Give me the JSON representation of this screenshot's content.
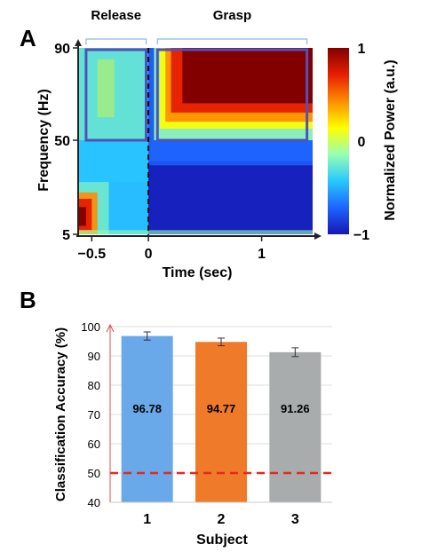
{
  "chart_data": [
    {
      "type": "heatmap",
      "panel_label": "A",
      "xlabel": "Time (sec)",
      "ylabel": "Frequency (Hz)",
      "xlim": [
        -0.62,
        1.45
      ],
      "x_ticks": [
        {
          "value": -0.5,
          "label": "−0.5"
        },
        {
          "value": 0,
          "label": "0"
        },
        {
          "value": 1,
          "label": "1"
        }
      ],
      "y_ticks": [
        {
          "value": 5,
          "label": "5"
        },
        {
          "value": 50,
          "label": "50"
        },
        {
          "value": 90,
          "label": "90"
        }
      ],
      "onset_marker_x": 0,
      "regions": [
        {
          "label": "Release",
          "x_range": [
            -0.55,
            -0.02
          ],
          "freq_range": [
            50,
            90
          ]
        },
        {
          "label": "Grasp",
          "x_range": [
            0.08,
            1.4
          ],
          "freq_range": [
            50,
            90
          ]
        }
      ],
      "colorbar": {
        "label": "Normalized Power (a.u.)",
        "min": -1,
        "max": 1,
        "ticks": [
          {
            "value": 1,
            "label": "1"
          },
          {
            "value": 0,
            "label": "0"
          },
          {
            "value": -1,
            "label": "−1"
          }
        ],
        "colors": [
          "#1616b4",
          "#1e64ff",
          "#28c8ff",
          "#96ffb4",
          "#ffff00",
          "#ff8c00",
          "#e61e00",
          "#820000"
        ]
      },
      "box_color": "#5151b8"
    },
    {
      "type": "bar",
      "panel_label": "B",
      "xlabel": "Subject",
      "ylabel": "Classification Accuracy (%)",
      "ylim": [
        40,
        100
      ],
      "y_ticks": [
        40,
        50,
        60,
        70,
        80,
        90,
        100
      ],
      "categories": [
        "1",
        "2",
        "3"
      ],
      "values": [
        96.78,
        94.77,
        91.26
      ],
      "value_labels": [
        "96.78",
        "94.77",
        "91.26"
      ],
      "errors": [
        1.4,
        1.3,
        1.5
      ],
      "bar_colors": [
        "#69a9e9",
        "#ef7a2a",
        "#a8acac"
      ],
      "chance_level": 50,
      "chance_color": "#e8281e"
    }
  ]
}
